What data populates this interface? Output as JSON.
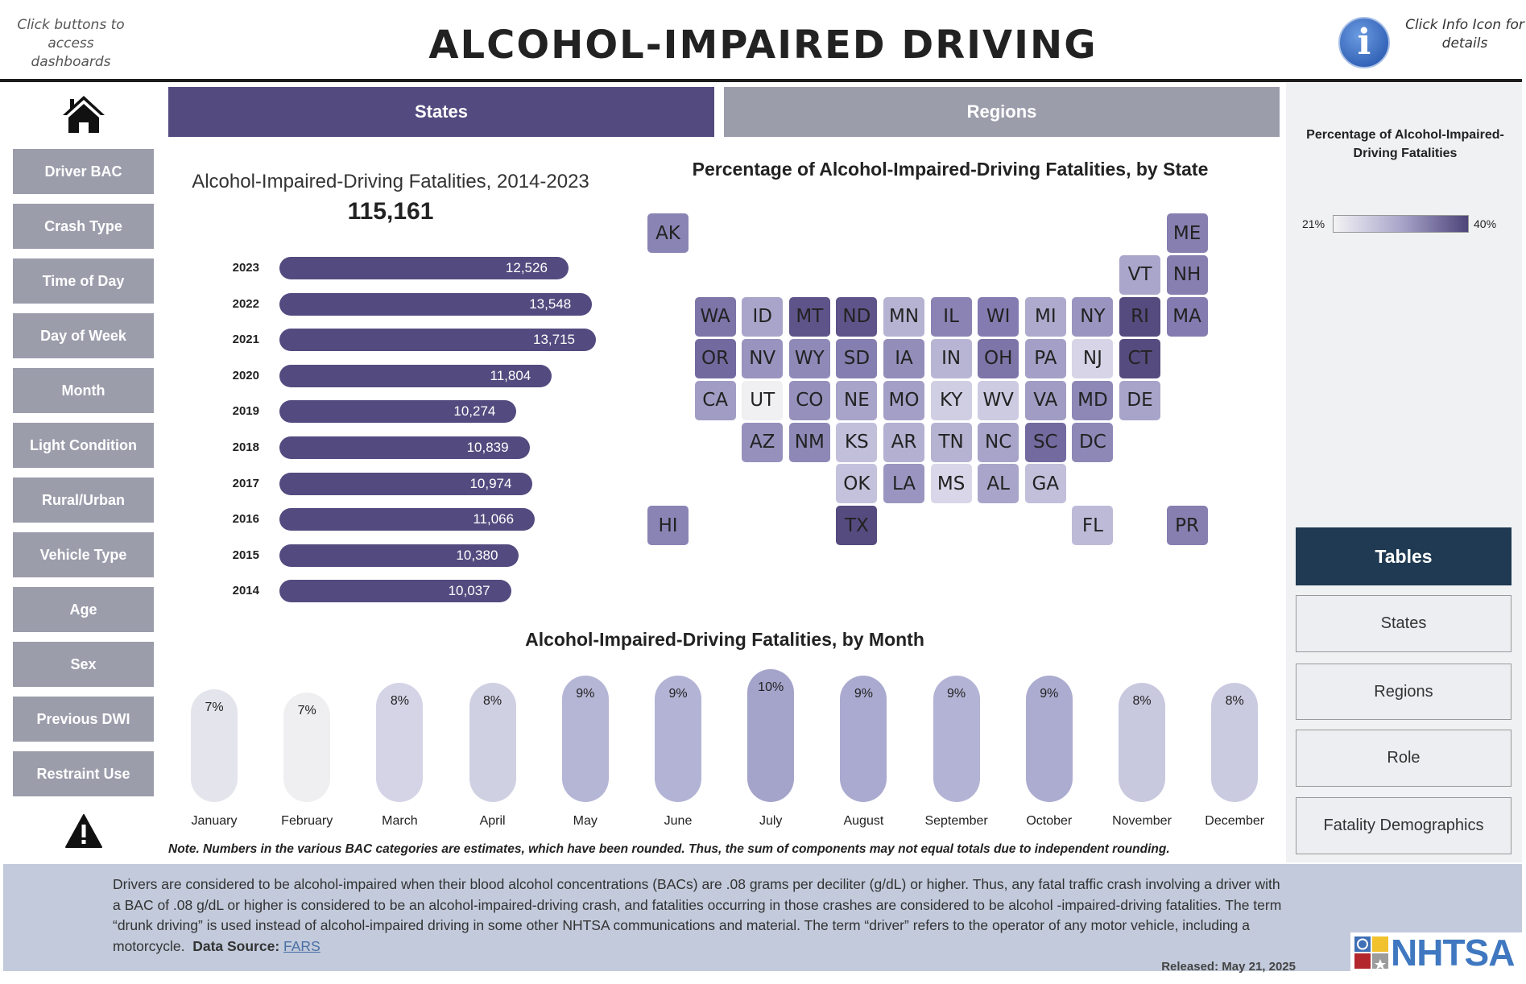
{
  "header": {
    "hint_left": "Click buttons to access dashboards",
    "title": "ALCOHOL-IMPAIRED DRIVING",
    "hint_right": "Click Info Icon for details"
  },
  "sidebar": {
    "items": [
      {
        "label": "Driver BAC"
      },
      {
        "label": "Crash Type"
      },
      {
        "label": "Time of Day"
      },
      {
        "label": "Day of Week"
      },
      {
        "label": "Month"
      },
      {
        "label": "Light Condition"
      },
      {
        "label": "Rural/Urban"
      },
      {
        "label": "Vehicle Type"
      },
      {
        "label": "Age"
      },
      {
        "label": "Sex"
      },
      {
        "label": "Previous DWI"
      },
      {
        "label": "Restraint Use"
      }
    ]
  },
  "tabs": [
    {
      "label": "States",
      "active": true
    },
    {
      "label": "Regions",
      "active": false
    }
  ],
  "colors": {
    "accent": "#534b7f",
    "inactive": "#9b9dab",
    "tables": "#1f3a52",
    "footer": "#c2cadb"
  },
  "legend": {
    "title": "Percentage of Alcohol-Impaired-Driving Fatalities",
    "min": "21%",
    "max": "40%"
  },
  "right_buttons": {
    "tables": "Tables",
    "items": [
      "States",
      "Regions",
      "Role",
      "Fatality Demographics"
    ]
  },
  "chart_data": [
    {
      "type": "bar",
      "title": "Alcohol-Impaired-Driving Fatalities, 2014-2023",
      "total": "115,161",
      "categories": [
        "2023",
        "2022",
        "2021",
        "2020",
        "2019",
        "2018",
        "2017",
        "2016",
        "2015",
        "2014"
      ],
      "values": [
        12526,
        13548,
        13715,
        11804,
        10274,
        10839,
        10974,
        11066,
        10380,
        10037
      ],
      "labels": [
        "12,526",
        "13,548",
        "13,715",
        "11,804",
        "10,274",
        "10,839",
        "10,974",
        "11,066",
        "10,380",
        "10,037"
      ]
    },
    {
      "type": "heatmap",
      "title": "Percentage of Alcohol-Impaired-Driving Fatalities, by State",
      "states": [
        {
          "s": "AK",
          "r": 0,
          "c": 0,
          "color": "#8a84b5"
        },
        {
          "s": "ME",
          "r": 0,
          "c": 11,
          "color": "#867fb0"
        },
        {
          "s": "VT",
          "r": 1,
          "c": 10,
          "color": "#aaa6cb"
        },
        {
          "s": "NH",
          "r": 1,
          "c": 11,
          "color": "#867fb0"
        },
        {
          "s": "WA",
          "r": 2,
          "c": 1,
          "color": "#7d74a8"
        },
        {
          "s": "ID",
          "r": 2,
          "c": 2,
          "color": "#a9a5ca"
        },
        {
          "s": "MT",
          "r": 2,
          "c": 3,
          "color": "#5e5489"
        },
        {
          "s": "ND",
          "r": 2,
          "c": 4,
          "color": "#5e5489"
        },
        {
          "s": "MN",
          "r": 2,
          "c": 5,
          "color": "#b5b2d2"
        },
        {
          "s": "IL",
          "r": 2,
          "c": 6,
          "color": "#8a83b3"
        },
        {
          "s": "WI",
          "r": 2,
          "c": 7,
          "color": "#847cb0"
        },
        {
          "s": "MI",
          "r": 2,
          "c": 8,
          "color": "#aeaacd"
        },
        {
          "s": "NY",
          "r": 2,
          "c": 9,
          "color": "#9a95c0"
        },
        {
          "s": "RI",
          "r": 2,
          "c": 10,
          "color": "#554b7e"
        },
        {
          "s": "MA",
          "r": 2,
          "c": 11,
          "color": "#847cb0"
        },
        {
          "s": "OR",
          "r": 3,
          "c": 1,
          "color": "#726a9f"
        },
        {
          "s": "NV",
          "r": 3,
          "c": 2,
          "color": "#9893bf"
        },
        {
          "s": "WY",
          "r": 3,
          "c": 3,
          "color": "#8f89b8"
        },
        {
          "s": "SD",
          "r": 3,
          "c": 4,
          "color": "#857eb0"
        },
        {
          "s": "IA",
          "r": 3,
          "c": 5,
          "color": "#938dba"
        },
        {
          "s": "IN",
          "r": 3,
          "c": 6,
          "color": "#b8b5d4"
        },
        {
          "s": "OH",
          "r": 3,
          "c": 7,
          "color": "#7d74a8"
        },
        {
          "s": "PA",
          "r": 3,
          "c": 8,
          "color": "#a39fc6"
        },
        {
          "s": "NJ",
          "r": 3,
          "c": 9,
          "color": "#d6d4e6"
        },
        {
          "s": "CT",
          "r": 3,
          "c": 10,
          "color": "#554b7e"
        },
        {
          "s": "CA",
          "r": 4,
          "c": 1,
          "color": "#a19cc4"
        },
        {
          "s": "UT",
          "r": 4,
          "c": 2,
          "color": "#f0f0f2"
        },
        {
          "s": "CO",
          "r": 4,
          "c": 3,
          "color": "#9690bd"
        },
        {
          "s": "NE",
          "r": 4,
          "c": 4,
          "color": "#a7a3c9"
        },
        {
          "s": "MO",
          "r": 4,
          "c": 5,
          "color": "#a39fc6"
        },
        {
          "s": "KY",
          "r": 4,
          "c": 6,
          "color": "#d0cee3"
        },
        {
          "s": "WV",
          "r": 4,
          "c": 7,
          "color": "#cdcbe1"
        },
        {
          "s": "VA",
          "r": 4,
          "c": 8,
          "color": "#a19cc4"
        },
        {
          "s": "MD",
          "r": 4,
          "c": 9,
          "color": "#8e88b7"
        },
        {
          "s": "DE",
          "r": 4,
          "c": 10,
          "color": "#a7a3c9"
        },
        {
          "s": "AZ",
          "r": 5,
          "c": 2,
          "color": "#9690bd"
        },
        {
          "s": "NM",
          "r": 5,
          "c": 3,
          "color": "#8e88b7"
        },
        {
          "s": "KS",
          "r": 5,
          "c": 4,
          "color": "#c2bfdb"
        },
        {
          "s": "AR",
          "r": 5,
          "c": 5,
          "color": "#b3b0d1"
        },
        {
          "s": "TN",
          "r": 5,
          "c": 6,
          "color": "#b5b2d2"
        },
        {
          "s": "NC",
          "r": 5,
          "c": 7,
          "color": "#a7a3c9"
        },
        {
          "s": "SC",
          "r": 5,
          "c": 8,
          "color": "#736a9f"
        },
        {
          "s": "DC",
          "r": 5,
          "c": 9,
          "color": "#8e88b7"
        },
        {
          "s": "OK",
          "r": 6,
          "c": 4,
          "color": "#c4c1dc"
        },
        {
          "s": "LA",
          "r": 6,
          "c": 5,
          "color": "#9a95c0"
        },
        {
          "s": "MS",
          "r": 6,
          "c": 6,
          "color": "#d8d6e8"
        },
        {
          "s": "AL",
          "r": 6,
          "c": 7,
          "color": "#a9a5ca"
        },
        {
          "s": "GA",
          "r": 6,
          "c": 8,
          "color": "#c2bfdb"
        },
        {
          "s": "HI",
          "r": 7,
          "c": 0,
          "color": "#8a84b5"
        },
        {
          "s": "TX",
          "r": 7,
          "c": 4,
          "color": "#554b7e"
        },
        {
          "s": "FL",
          "r": 7,
          "c": 9,
          "color": "#bdbad8"
        },
        {
          "s": "PR",
          "r": 7,
          "c": 11,
          "color": "#867fb0"
        }
      ]
    },
    {
      "type": "bar",
      "title": "Alcohol-Impaired-Driving Fatalities, by Month",
      "categories": [
        "January",
        "February",
        "March",
        "April",
        "May",
        "June",
        "July",
        "August",
        "September",
        "October",
        "November",
        "December"
      ],
      "values": [
        7,
        7,
        8,
        8,
        9,
        9,
        10,
        9,
        9,
        9,
        8,
        8
      ],
      "labels": [
        "7%",
        "7%",
        "8%",
        "8%",
        "9%",
        "9%",
        "10%",
        "9%",
        "9%",
        "9%",
        "8%",
        "8%"
      ],
      "colors": [
        "#e4e4ec",
        "#efeff1",
        "#d4d4e6",
        "#d0d0e3",
        "#b5b5d6",
        "#b3b3d5",
        "#a4a4cb",
        "#aaaad0",
        "#b3b3d5",
        "#acacd1",
        "#c8c8df",
        "#cacae0"
      ]
    }
  ],
  "note": "Note. Numbers in the various BAC categories are estimates, which have been rounded.  Thus, the sum of components may not equal totals due to independent rounding.",
  "footer": {
    "text": "Drivers are considered to be alcohol-impaired when their blood alcohol concentrations (BACs) are .08 grams per deciliter (g/dL) or higher. Thus, any fatal traffic crash involving a driver with a BAC of .08 g/dL or higher is considered to be an alcohol-impaired-driving crash, and fatalities occurring in those crashes are considered to be alcohol -impaired-driving fatalities. The term “drunk driving” is used instead of alcohol-impaired driving in some other NHTSA communications and material. The term “driver” refers to the operator of any motor vehicle, including a motorcycle.",
    "source_label": "Data Source:",
    "source_link": "FARS",
    "released": "Released: May 21, 2025",
    "logo": "NHTSA"
  }
}
